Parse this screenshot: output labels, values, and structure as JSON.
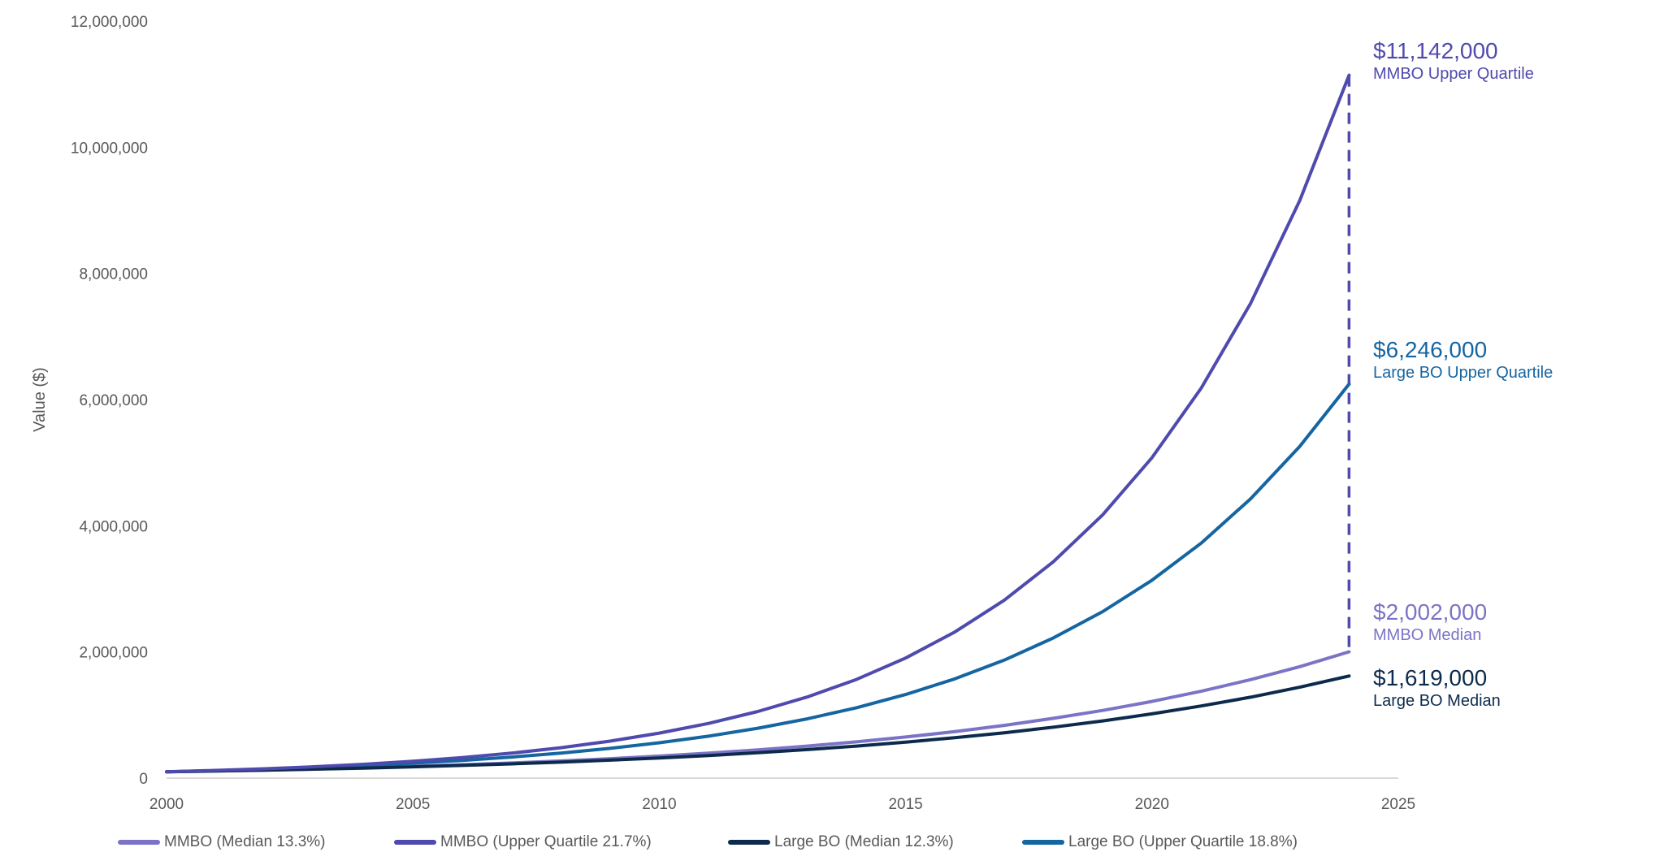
{
  "chart_data": {
    "type": "line",
    "title": "",
    "xlabel": "",
    "ylabel": "Value ($)",
    "xlim": [
      2000,
      2025
    ],
    "ylim": [
      0,
      12000000
    ],
    "x_ticks": [
      "2000",
      "2005",
      "2010",
      "2015",
      "2020",
      "2025"
    ],
    "y_ticks": [
      "0",
      "2,000,000",
      "4,000,000",
      "6,000,000",
      "8,000,000",
      "10,000,000",
      "12,000,000"
    ],
    "grid": false,
    "legend_position": "bottom",
    "x": [
      2000,
      2001,
      2002,
      2003,
      2004,
      2005,
      2006,
      2007,
      2008,
      2009,
      2010,
      2011,
      2012,
      2013,
      2014,
      2015,
      2016,
      2017,
      2018,
      2019,
      2020,
      2021,
      2022,
      2023,
      2024
    ],
    "series": [
      {
        "name": "MMBO (Median 13.3%)",
        "color": "#7b74c6",
        "values": [
          100000,
          113000,
          128000,
          145000,
          165000,
          187000,
          212000,
          240000,
          272000,
          308000,
          349000,
          395000,
          447000,
          507000,
          574000,
          651000,
          737000,
          835000,
          947000,
          1072000,
          1215000,
          1377000,
          1560000,
          1767000,
          2002000
        ]
      },
      {
        "name": "MMBO (Upper Quartile 21.7%)",
        "color": "#4f4aae",
        "values": [
          100000,
          122000,
          148000,
          180000,
          219000,
          267000,
          325000,
          395000,
          481000,
          586000,
          713000,
          867000,
          1056000,
          1285000,
          1563000,
          1903000,
          2316000,
          2818000,
          3430000,
          4174000,
          5079000,
          6182000,
          7523000,
          9156000,
          11142000
        ]
      },
      {
        "name": "Large BO (Median 12.3%)",
        "color": "#0c2b4c",
        "values": [
          100000,
          112000,
          126000,
          142000,
          159000,
          179000,
          201000,
          225000,
          253000,
          284000,
          319000,
          358000,
          402000,
          452000,
          507000,
          570000,
          640000,
          719000,
          807000,
          906000,
          1018000,
          1143000,
          1283000,
          1441000,
          1619000
        ]
      },
      {
        "name": "Large BO (Upper Quartile 18.8%)",
        "color": "#1565a1",
        "values": [
          100000,
          119000,
          141000,
          168000,
          199000,
          237000,
          281000,
          334000,
          397000,
          471000,
          560000,
          665000,
          790000,
          939000,
          1115000,
          1325000,
          1574000,
          1870000,
          2222000,
          2639000,
          3136000,
          3725000,
          4426000,
          5258000,
          6246000
        ]
      }
    ],
    "annotations": [
      {
        "value": "$11,142,000",
        "label": "MMBO Upper Quartile",
        "color": "#4f4aae"
      },
      {
        "value": "$6,246,000",
        "label": "Large BO Upper Quartile",
        "color": "#1565a1"
      },
      {
        "value": "$2,002,000",
        "label": "MMBO Median",
        "color": "#7b74c6"
      },
      {
        "value": "$1,619,000",
        "label": "Large BO Median",
        "color": "#0c2b4c"
      }
    ],
    "reference_line": {
      "style": "dashed",
      "x": 2024,
      "from": 2002000,
      "to": 11142000,
      "color": "#4f4aae"
    }
  }
}
